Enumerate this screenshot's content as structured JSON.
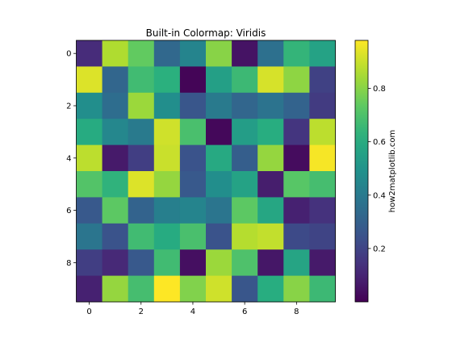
{
  "chart_data": {
    "type": "heatmap",
    "title": "Built-in Colormap: Viridis",
    "colormap": "viridis",
    "x_ticks": [
      0,
      2,
      4,
      6,
      8
    ],
    "y_ticks": [
      0,
      2,
      4,
      6,
      8
    ],
    "colorbar": {
      "label": "how2matplotlib.com",
      "ticks": [
        0.2,
        0.4,
        0.6,
        0.8
      ],
      "range": [
        0.0,
        0.98
      ]
    },
    "grid": false,
    "values": [
      [
        0.12,
        0.86,
        0.74,
        0.33,
        0.44,
        0.8,
        0.05,
        0.36,
        0.64,
        0.56
      ],
      [
        0.93,
        0.32,
        0.67,
        0.62,
        0.01,
        0.55,
        0.66,
        0.92,
        0.81,
        0.19
      ],
      [
        0.48,
        0.35,
        0.83,
        0.48,
        0.26,
        0.4,
        0.32,
        0.37,
        0.31,
        0.17
      ],
      [
        0.6,
        0.45,
        0.4,
        0.91,
        0.69,
        0.02,
        0.54,
        0.61,
        0.15,
        0.88
      ],
      [
        0.88,
        0.07,
        0.18,
        0.9,
        0.25,
        0.59,
        0.29,
        0.82,
        0.03,
        0.97
      ],
      [
        0.71,
        0.63,
        0.93,
        0.82,
        0.27,
        0.48,
        0.56,
        0.08,
        0.72,
        0.68
      ],
      [
        0.27,
        0.73,
        0.31,
        0.42,
        0.44,
        0.38,
        0.73,
        0.58,
        0.09,
        0.14
      ],
      [
        0.38,
        0.25,
        0.67,
        0.6,
        0.69,
        0.25,
        0.87,
        0.89,
        0.22,
        0.2
      ],
      [
        0.18,
        0.11,
        0.27,
        0.67,
        0.04,
        0.83,
        0.7,
        0.06,
        0.57,
        0.07
      ],
      [
        0.09,
        0.82,
        0.68,
        0.98,
        0.79,
        0.91,
        0.26,
        0.61,
        0.8,
        0.66
      ]
    ]
  }
}
